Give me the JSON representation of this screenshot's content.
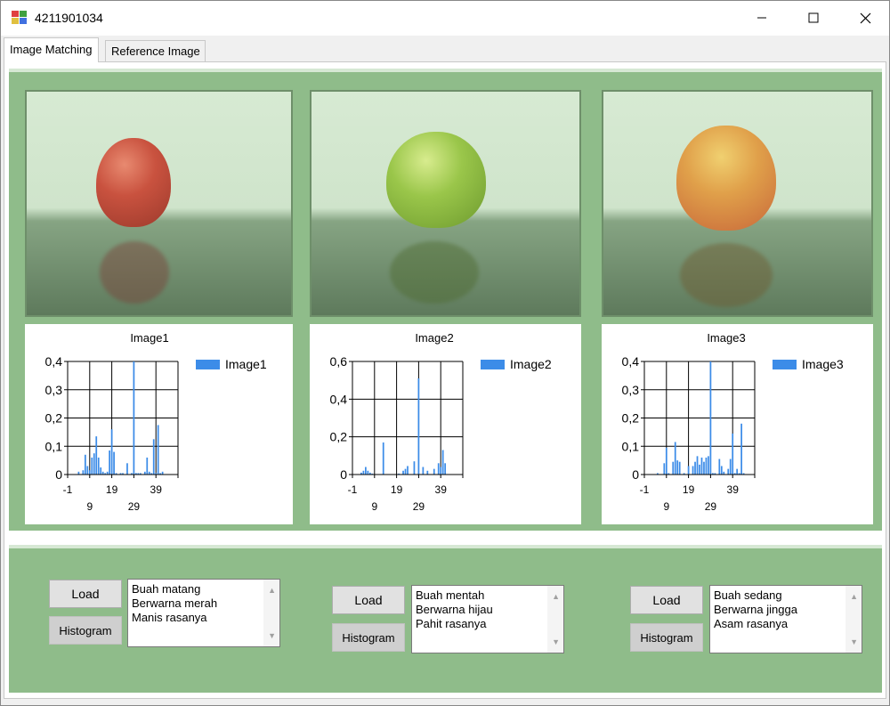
{
  "window": {
    "title": "4211901034"
  },
  "tabs": [
    {
      "label": "Image Matching"
    },
    {
      "label": "Reference Image"
    }
  ],
  "photos": [
    {
      "name": "red tomato"
    },
    {
      "name": "green tomato"
    },
    {
      "name": "orange tomato"
    }
  ],
  "chart_data": [
    {
      "type": "bar",
      "title": "Image1",
      "legend": "Image1",
      "legend_position": "top-right",
      "color": "#3c8ce8",
      "xlim": [
        -1,
        49
      ],
      "ylim": [
        0,
        0.4
      ],
      "grid": true,
      "y_ticks": [
        "0",
        "0,1",
        "0,2",
        "0,3",
        "0,4"
      ],
      "x_ticks_top": [
        "-1",
        "19",
        "39"
      ],
      "x_ticks_bottom": [
        "9",
        "29"
      ],
      "x": [
        4,
        6,
        7,
        8,
        9,
        10,
        11,
        12,
        13,
        14,
        15,
        16,
        17,
        18,
        19,
        20,
        21,
        23,
        24,
        26,
        28,
        29,
        30,
        31,
        32,
        34,
        35,
        36,
        37,
        38,
        39,
        40,
        41,
        42
      ],
      "values": [
        0.01,
        0.015,
        0.07,
        0.03,
        0.015,
        0.06,
        0.075,
        0.135,
        0.06,
        0.025,
        0.01,
        0.005,
        0.01,
        0.085,
        0.16,
        0.08,
        0.005,
        0.005,
        0.005,
        0.04,
        0.005,
        0.4,
        0.005,
        0.005,
        0.005,
        0.01,
        0.06,
        0.01,
        0.005,
        0.125,
        0.005,
        0.175,
        0.005,
        0.01
      ]
    },
    {
      "type": "bar",
      "title": "Image2",
      "legend": "Image2",
      "legend_position": "top-right",
      "color": "#3c8ce8",
      "xlim": [
        -1,
        49
      ],
      "ylim": [
        0,
        0.6
      ],
      "grid": true,
      "y_ticks": [
        "0",
        "0,2",
        "0,4",
        "0,6"
      ],
      "x_ticks_top": [
        "-1",
        "19",
        "39"
      ],
      "x_ticks_bottom": [
        "9",
        "29"
      ],
      "x": [
        3,
        4,
        5,
        6,
        7,
        8,
        13,
        20,
        22,
        23,
        24,
        27,
        29,
        31,
        33,
        36,
        38,
        39,
        40,
        41
      ],
      "values": [
        0.01,
        0.02,
        0.04,
        0.02,
        0.01,
        0.005,
        0.17,
        0.005,
        0.02,
        0.03,
        0.045,
        0.07,
        0.51,
        0.04,
        0.02,
        0.03,
        0.06,
        0.04,
        0.13,
        0.06
      ]
    },
    {
      "type": "bar",
      "title": "Image3",
      "legend": "Image3",
      "legend_position": "top-right",
      "color": "#3c8ce8",
      "xlim": [
        -1,
        49
      ],
      "ylim": [
        0,
        0.4
      ],
      "grid": true,
      "y_ticks": [
        "0",
        "0,1",
        "0,2",
        "0,3",
        "0,4"
      ],
      "x_ticks_top": [
        "-1",
        "19",
        "39"
      ],
      "x_ticks_bottom": [
        "9",
        "29"
      ],
      "x": [
        5,
        8,
        9,
        10,
        12,
        13,
        14,
        15,
        17,
        19,
        21,
        22,
        23,
        24,
        25,
        26,
        27,
        28,
        29,
        30,
        31,
        33,
        34,
        35,
        37,
        38,
        39,
        40,
        41,
        42,
        43,
        44
      ],
      "values": [
        0.005,
        0.04,
        0.095,
        0.005,
        0.045,
        0.115,
        0.05,
        0.045,
        0.005,
        0.03,
        0.03,
        0.045,
        0.065,
        0.035,
        0.06,
        0.045,
        0.06,
        0.065,
        0.4,
        0.005,
        0.005,
        0.055,
        0.03,
        0.01,
        0.02,
        0.055,
        0.145,
        0.005,
        0.02,
        0.005,
        0.18,
        0.005
      ]
    }
  ],
  "bottom": {
    "load_label": "Load",
    "histogram_label": "Histogram",
    "descriptions": [
      [
        "Buah matang",
        "Berwarna merah",
        "Manis rasanya"
      ],
      [
        "Buah mentah",
        "Berwarna hijau",
        "Pahit rasanya"
      ],
      [
        "Buah sedang",
        "Berwarna jingga",
        "Asam rasanya"
      ]
    ]
  },
  "colors": {
    "panel": "#8fbc8a",
    "bar": "#3c8ce8",
    "tab_active": "#ffffff"
  },
  "icons": [
    "app-icon",
    "minimize-icon",
    "maximize-icon",
    "close-icon",
    "scroll-up-icon",
    "scroll-down-icon"
  ]
}
